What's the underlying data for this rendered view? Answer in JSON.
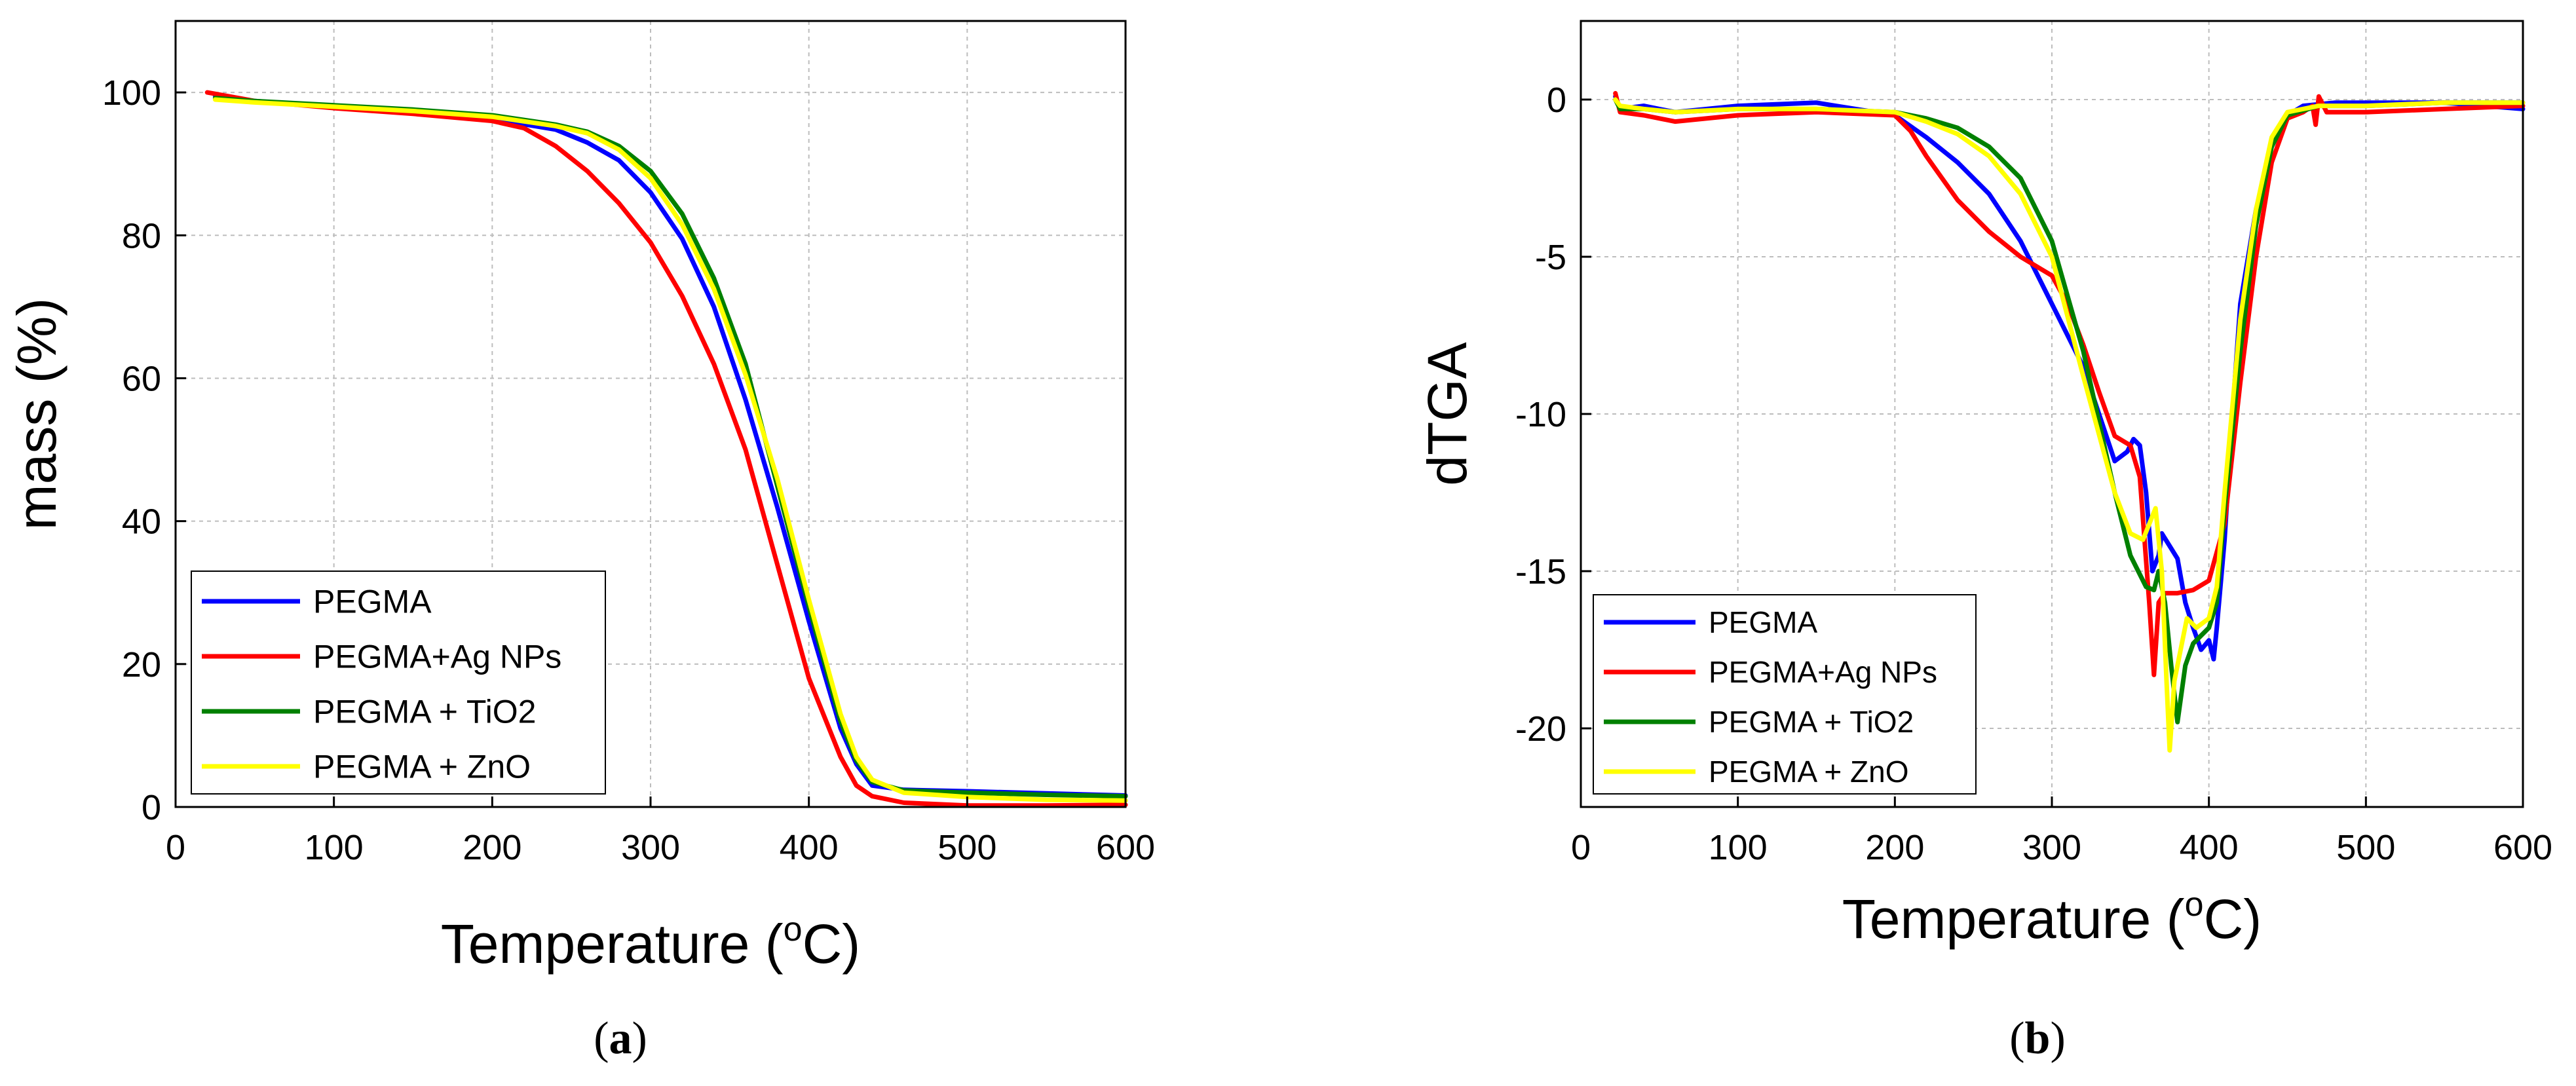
{
  "chart_data": [
    {
      "type": "line",
      "panel": "a",
      "caption": {
        "open": "(",
        "letter": "a",
        "close": ")"
      },
      "xlabel": {
        "prefix": "Temperature (",
        "sup": "o",
        "suffix": "C)"
      },
      "ylabel": "mass (%)",
      "xlim": [
        0,
        600
      ],
      "ylim": [
        0,
        110
      ],
      "xticks": [
        0,
        100,
        200,
        300,
        400,
        500,
        600
      ],
      "yticks": [
        0,
        20,
        40,
        60,
        80,
        100
      ],
      "grid": true,
      "legend_position": "bottom-left",
      "series": [
        {
          "name": "PEGMA",
          "color": "#0000ff",
          "points": [
            [
              25,
              99.5
            ],
            [
              50,
              98.8
            ],
            [
              100,
              98.0
            ],
            [
              150,
              97.2
            ],
            [
              200,
              96.3
            ],
            [
              240,
              94.8
            ],
            [
              260,
              93.0
            ],
            [
              280,
              90.5
            ],
            [
              300,
              86.0
            ],
            [
              320,
              79.5
            ],
            [
              340,
              70.0
            ],
            [
              360,
              57.0
            ],
            [
              380,
              42.0
            ],
            [
              400,
              26.0
            ],
            [
              420,
              11.0
            ],
            [
              430,
              6.0
            ],
            [
              440,
              3.0
            ],
            [
              460,
              2.4
            ],
            [
              500,
              2.2
            ],
            [
              550,
              1.9
            ],
            [
              600,
              1.6
            ]
          ]
        },
        {
          "name": "PEGMA+Ag NPs",
          "color": "#ff0000",
          "points": [
            [
              20,
              100.0
            ],
            [
              50,
              98.8
            ],
            [
              100,
              97.8
            ],
            [
              150,
              97.0
            ],
            [
              200,
              96.0
            ],
            [
              220,
              95.0
            ],
            [
              240,
              92.5
            ],
            [
              260,
              89.0
            ],
            [
              280,
              84.5
            ],
            [
              300,
              79.0
            ],
            [
              320,
              71.5
            ],
            [
              340,
              62.0
            ],
            [
              360,
              50.0
            ],
            [
              380,
              34.0
            ],
            [
              400,
              18.0
            ],
            [
              420,
              7.0
            ],
            [
              430,
              3.0
            ],
            [
              440,
              1.5
            ],
            [
              460,
              0.6
            ],
            [
              500,
              0.2
            ],
            [
              550,
              0.2
            ],
            [
              600,
              0.3
            ]
          ]
        },
        {
          "name": "PEGMA + TiO2",
          "color": "#008000",
          "points": [
            [
              25,
              99.2
            ],
            [
              50,
              98.8
            ],
            [
              100,
              98.2
            ],
            [
              150,
              97.6
            ],
            [
              200,
              96.8
            ],
            [
              240,
              95.5
            ],
            [
              260,
              94.5
            ],
            [
              280,
              92.5
            ],
            [
              300,
              89.0
            ],
            [
              320,
              83.0
            ],
            [
              340,
              74.0
            ],
            [
              360,
              62.0
            ],
            [
              380,
              45.0
            ],
            [
              400,
              28.0
            ],
            [
              420,
              12.0
            ],
            [
              430,
              6.5
            ],
            [
              440,
              3.5
            ],
            [
              460,
              2.3
            ],
            [
              500,
              2.0
            ],
            [
              550,
              1.7
            ],
            [
              600,
              1.5
            ]
          ]
        },
        {
          "name": "PEGMA + ZnO",
          "color": "#ffff00",
          "points": [
            [
              25,
              99.0
            ],
            [
              50,
              98.6
            ],
            [
              100,
              98.0
            ],
            [
              150,
              97.4
            ],
            [
              200,
              96.6
            ],
            [
              240,
              95.3
            ],
            [
              260,
              94.3
            ],
            [
              280,
              92.0
            ],
            [
              300,
              88.0
            ],
            [
              320,
              81.5
            ],
            [
              340,
              72.5
            ],
            [
              360,
              60.5
            ],
            [
              380,
              46.0
            ],
            [
              400,
              29.0
            ],
            [
              420,
              13.0
            ],
            [
              430,
              7.0
            ],
            [
              440,
              3.8
            ],
            [
              460,
              2.0
            ],
            [
              500,
              1.4
            ],
            [
              550,
              1.0
            ],
            [
              600,
              0.9
            ]
          ]
        }
      ]
    },
    {
      "type": "line",
      "panel": "b",
      "caption": {
        "open": "(",
        "letter": "b",
        "close": ")"
      },
      "xlabel": {
        "prefix": "Temperature (",
        "sup": "o",
        "suffix": "C)"
      },
      "ylabel": "dTGA",
      "xlim": [
        0,
        600
      ],
      "ylim": [
        -22.5,
        2.5
      ],
      "xticks": [
        0,
        100,
        200,
        300,
        400,
        500,
        600
      ],
      "yticks": [
        -20,
        -15,
        -10,
        -5,
        0
      ],
      "grid": true,
      "legend_position": "bottom-left",
      "series": [
        {
          "name": "PEGMA",
          "color": "#0000ff",
          "points": [
            [
              22,
              0.1
            ],
            [
              25,
              -0.3
            ],
            [
              40,
              -0.2
            ],
            [
              60,
              -0.4
            ],
            [
              100,
              -0.2
            ],
            [
              150,
              -0.1
            ],
            [
              200,
              -0.5
            ],
            [
              220,
              -1.2
            ],
            [
              240,
              -2.0
            ],
            [
              260,
              -3.0
            ],
            [
              280,
              -4.5
            ],
            [
              300,
              -6.5
            ],
            [
              320,
              -8.5
            ],
            [
              340,
              -11.5
            ],
            [
              348,
              -11.2
            ],
            [
              352,
              -10.8
            ],
            [
              356,
              -11.0
            ],
            [
              360,
              -12.5
            ],
            [
              364,
              -15.0
            ],
            [
              368,
              -14.5
            ],
            [
              370,
              -13.8
            ],
            [
              375,
              -14.2
            ],
            [
              380,
              -14.6
            ],
            [
              385,
              -16.0
            ],
            [
              390,
              -16.8
            ],
            [
              395,
              -17.5
            ],
            [
              400,
              -17.2
            ],
            [
              403,
              -17.8
            ],
            [
              405,
              -16.8
            ],
            [
              410,
              -14.0
            ],
            [
              415,
              -10.0
            ],
            [
              420,
              -6.5
            ],
            [
              430,
              -3.5
            ],
            [
              440,
              -1.5
            ],
            [
              450,
              -0.5
            ],
            [
              460,
              -0.2
            ],
            [
              480,
              -0.1
            ],
            [
              500,
              -0.1
            ],
            [
              550,
              -0.1
            ],
            [
              600,
              -0.3
            ]
          ]
        },
        {
          "name": "PEGMA+Ag NPs",
          "color": "#ff0000",
          "points": [
            [
              22,
              0.2
            ],
            [
              25,
              -0.4
            ],
            [
              40,
              -0.5
            ],
            [
              60,
              -0.7
            ],
            [
              100,
              -0.5
            ],
            [
              150,
              -0.4
            ],
            [
              200,
              -0.5
            ],
            [
              210,
              -1.0
            ],
            [
              220,
              -1.8
            ],
            [
              240,
              -3.2
            ],
            [
              260,
              -4.2
            ],
            [
              280,
              -5.0
            ],
            [
              290,
              -5.3
            ],
            [
              300,
              -5.6
            ],
            [
              310,
              -6.5
            ],
            [
              320,
              -7.8
            ],
            [
              330,
              -9.3
            ],
            [
              340,
              -10.7
            ],
            [
              350,
              -11.0
            ],
            [
              356,
              -12.0
            ],
            [
              362,
              -16.0
            ],
            [
              365,
              -18.3
            ],
            [
              368,
              -16.0
            ],
            [
              372,
              -15.7
            ],
            [
              380,
              -15.7
            ],
            [
              390,
              -15.6
            ],
            [
              400,
              -15.3
            ],
            [
              410,
              -13.5
            ],
            [
              420,
              -9.0
            ],
            [
              430,
              -5.0
            ],
            [
              440,
              -2.0
            ],
            [
              450,
              -0.6
            ],
            [
              460,
              -0.4
            ],
            [
              466,
              -0.2
            ],
            [
              468,
              -0.8
            ],
            [
              470,
              0.1
            ],
            [
              475,
              -0.4
            ],
            [
              500,
              -0.4
            ],
            [
              550,
              -0.3
            ],
            [
              600,
              -0.2
            ]
          ]
        },
        {
          "name": "PEGMA + TiO2",
          "color": "#008000",
          "points": [
            [
              22,
              0.0
            ],
            [
              25,
              -0.3
            ],
            [
              40,
              -0.3
            ],
            [
              60,
              -0.4
            ],
            [
              100,
              -0.3
            ],
            [
              150,
              -0.3
            ],
            [
              200,
              -0.4
            ],
            [
              220,
              -0.6
            ],
            [
              240,
              -0.9
            ],
            [
              260,
              -1.5
            ],
            [
              280,
              -2.5
            ],
            [
              300,
              -4.5
            ],
            [
              320,
              -8.0
            ],
            [
              340,
              -12.5
            ],
            [
              350,
              -14.5
            ],
            [
              360,
              -15.5
            ],
            [
              365,
              -15.6
            ],
            [
              368,
              -15.0
            ],
            [
              372,
              -16.0
            ],
            [
              376,
              -18.0
            ],
            [
              380,
              -19.8
            ],
            [
              385,
              -18.0
            ],
            [
              390,
              -17.3
            ],
            [
              400,
              -16.8
            ],
            [
              405,
              -16.0
            ],
            [
              410,
              -13.0
            ],
            [
              420,
              -8.0
            ],
            [
              430,
              -4.0
            ],
            [
              440,
              -1.5
            ],
            [
              450,
              -0.5
            ],
            [
              470,
              -0.2
            ],
            [
              500,
              -0.2
            ],
            [
              550,
              -0.1
            ],
            [
              600,
              -0.1
            ]
          ]
        },
        {
          "name": "PEGMA + ZnO",
          "color": "#ffff00",
          "points": [
            [
              22,
              0.0
            ],
            [
              25,
              -0.2
            ],
            [
              40,
              -0.3
            ],
            [
              60,
              -0.4
            ],
            [
              100,
              -0.3
            ],
            [
              150,
              -0.3
            ],
            [
              200,
              -0.4
            ],
            [
              220,
              -0.7
            ],
            [
              240,
              -1.1
            ],
            [
              260,
              -1.8
            ],
            [
              280,
              -3.0
            ],
            [
              300,
              -5.0
            ],
            [
              320,
              -8.8
            ],
            [
              340,
              -12.5
            ],
            [
              350,
              -13.8
            ],
            [
              358,
              -14.0
            ],
            [
              362,
              -13.5
            ],
            [
              366,
              -13.0
            ],
            [
              370,
              -15.0
            ],
            [
              373,
              -18.5
            ],
            [
              375,
              -20.7
            ],
            [
              378,
              -18.5
            ],
            [
              382,
              -17.5
            ],
            [
              386,
              -16.5
            ],
            [
              392,
              -16.8
            ],
            [
              400,
              -16.5
            ],
            [
              405,
              -15.5
            ],
            [
              410,
              -12.5
            ],
            [
              420,
              -7.0
            ],
            [
              430,
              -3.5
            ],
            [
              440,
              -1.2
            ],
            [
              450,
              -0.4
            ],
            [
              470,
              -0.2
            ],
            [
              500,
              -0.2
            ],
            [
              550,
              -0.1
            ],
            [
              600,
              -0.1
            ]
          ]
        }
      ]
    }
  ]
}
